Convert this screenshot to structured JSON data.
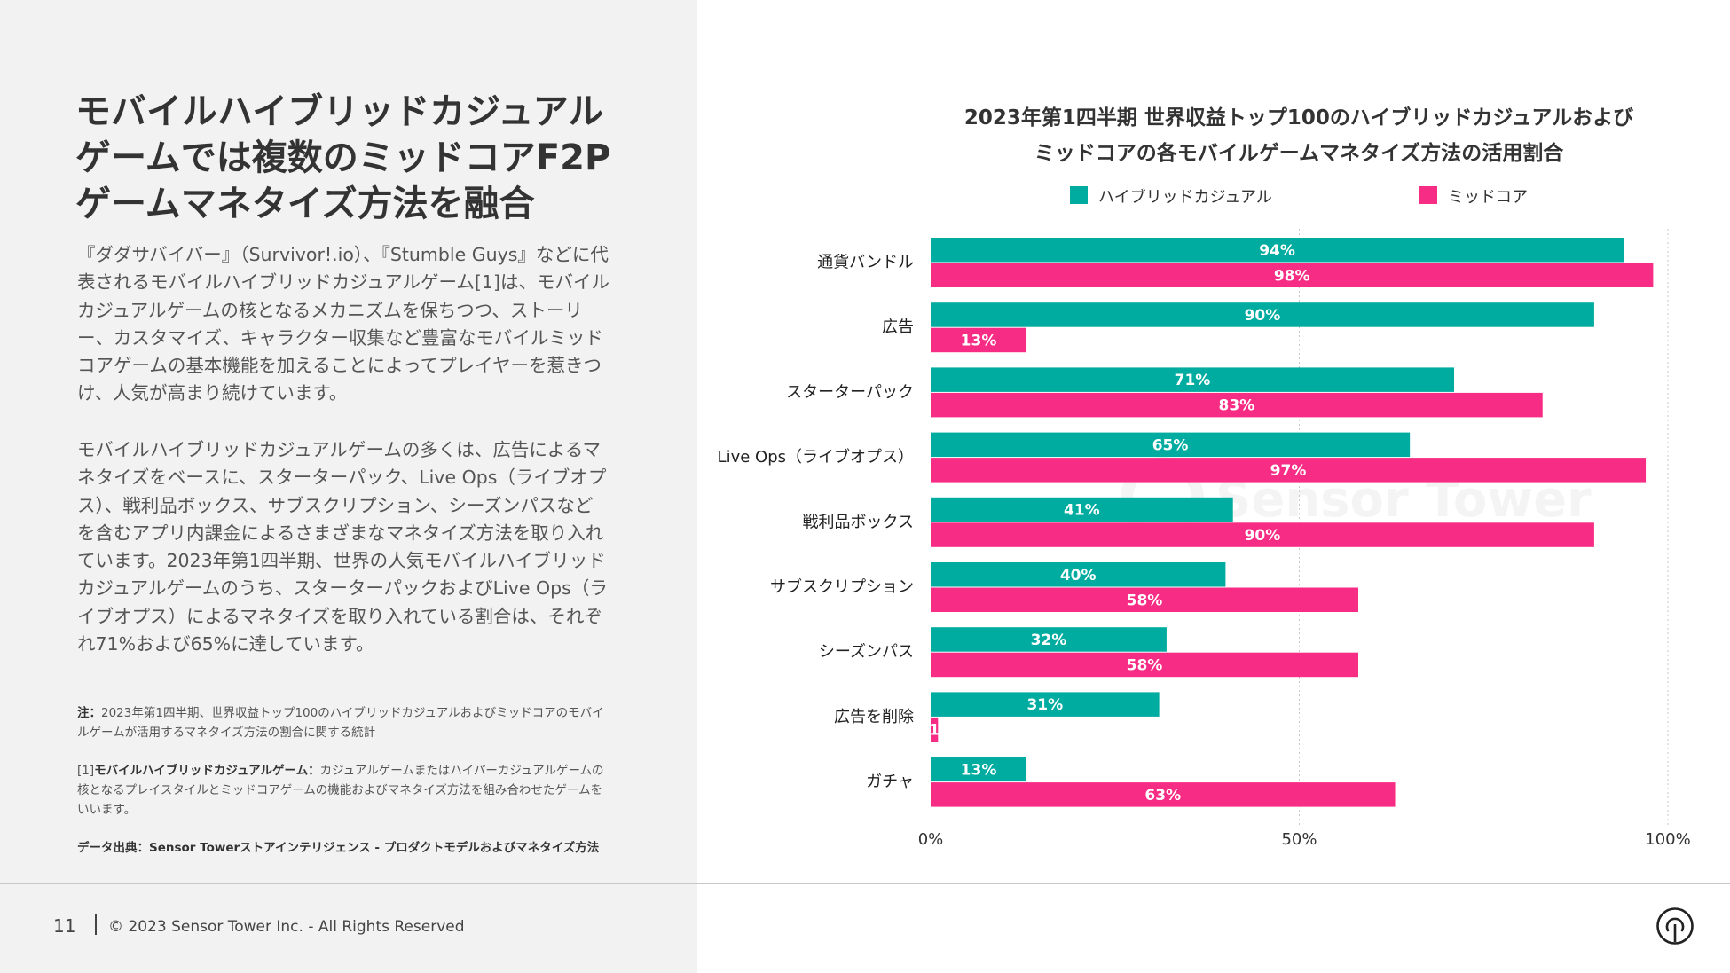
{
  "left": {
    "headline": "モバイルハイブリッドカジュアルゲームでは複数のミッドコアF2Pゲームマネタイズ方法を融合",
    "paragraph1": "『ダダサバイバー』（Survivor!.io）、『Stumble Guys』などに代表されるモバイルハイブリッドカジュアルゲーム[1]は、モバイルカジュアルゲームの核となるメカニズムを保ちつつ、ストーリー、カスタマイズ、キャラクター収集など豊富なモバイルミッドコアゲームの基本機能を加えることによってプレイヤーを惹きつけ、人気が高まり続けています。",
    "paragraph2": "モバイルハイブリッドカジュアルゲームの多くは、広告によるマネタイズをベースに、スターターパック、Live Ops（ライブオプス）、戦利品ボックス、サブスクリプション、シーズンパスなどを含むアプリ内課金によるさまざまなマネタイズ方法を取り入れています。2023年第1四半期、世界の人気モバイルハイブリッドカジュアルゲームのうち、スターターパックおよびLive Ops（ライブオプス）によるマネタイズを取り入れている割合は、それぞれ71%および65%に達しています。",
    "note_label": "注：",
    "note_text": "2023年第1四半期、世界収益トップ100のハイブリッドカジュアルおよびミッドコアのモバイルゲームが活用するマネタイズ方法の割合に関する統計",
    "footnote_ref": "[1]",
    "footnote_term": "モバイルハイブリッドカジュアルゲーム：",
    "footnote_text": "カジュアルゲームまたはハイパーカジュアルゲームの核となるプレイスタイルとミッドコアゲームの機能およびマネタイズ方法を組み合わせたゲームをいいます。",
    "source": "データ出典：Sensor Towerストアインテリジェンス - プロダクトモデルおよびマネタイズ方法"
  },
  "footer": {
    "page_number": "11",
    "copyright": "© 2023 Sensor Tower Inc. - All Rights Reserved"
  },
  "watermark": "Sensor Tower",
  "chart_data": {
    "type": "bar",
    "orientation": "horizontal",
    "title_line1": "2023年第1四半期 世界収益トップ100のハイブリッドカジュアルおよび",
    "title_line2": "ミッドコアの各モバイルゲームマネタイズ方法の活用割合",
    "categories": [
      "通貨バンドル",
      "広告",
      "スターターパック",
      "Live Ops（ライブオプス）",
      "戦利品ボックス",
      "サブスクリプション",
      "シーズンパス",
      "広告を削除",
      "ガチャ"
    ],
    "series": [
      {
        "name": "ハイブリッドカジュアル",
        "color": "#00ab9f",
        "values": [
          94,
          90,
          71,
          65,
          41,
          40,
          32,
          31,
          13
        ],
        "labels": [
          "94%",
          "90%",
          "71%",
          "65%",
          "41%",
          "40%",
          "32%",
          "31%",
          "13%"
        ]
      },
      {
        "name": "ミッドコア",
        "color": "#f72c84",
        "values": [
          98,
          13,
          83,
          97,
          90,
          58,
          58,
          1,
          63
        ],
        "labels": [
          "98%",
          "13%",
          "83%",
          "97%",
          "90%",
          "58%",
          "58%",
          "1",
          "63%"
        ]
      }
    ],
    "xlim": [
      0,
      100
    ],
    "xticks": [
      0,
      50,
      100
    ],
    "xtick_labels": [
      "0%",
      "50%",
      "100%"
    ],
    "legend_position": "top"
  }
}
